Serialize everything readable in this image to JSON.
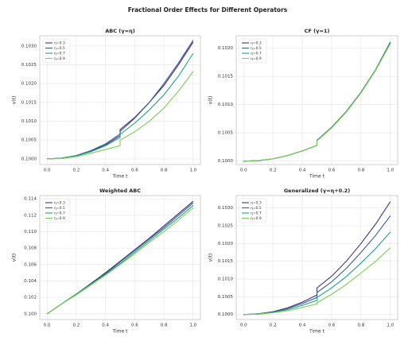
{
  "title": "Fractional Order Effects for Different Operators",
  "chart_data": [
    {
      "type": "line",
      "title": "ABC (γ=η)",
      "xlabel": "Time t",
      "ylabel": "v(t)",
      "grid": true,
      "legend": "upper left",
      "x": [
        0,
        0.1,
        0.2,
        0.3,
        0.4,
        0.5,
        0.5,
        0.6,
        0.7,
        0.8,
        0.9,
        1.0
      ],
      "xlim": [
        -0.05,
        1.05
      ],
      "xticks": [
        {
          "value": 0,
          "label": "0.0"
        },
        {
          "value": 0.2,
          "label": "0.2"
        },
        {
          "value": 0.4,
          "label": "0.4"
        },
        {
          "value": 0.6,
          "label": "0.6"
        },
        {
          "value": 0.8,
          "label": "0.8"
        },
        {
          "value": 1.0,
          "label": "1.0"
        }
      ],
      "ylim": [
        0.09985,
        0.10327
      ],
      "yticks": [
        {
          "value": 0.1,
          "label": "0.1000"
        },
        {
          "value": 0.1005,
          "label": "0.1005"
        },
        {
          "value": 0.101,
          "label": "0.1010"
        },
        {
          "value": 0.1015,
          "label": "0.1015"
        },
        {
          "value": 0.102,
          "label": "0.1020"
        },
        {
          "value": 0.1025,
          "label": "0.1025"
        },
        {
          "value": 0.103,
          "label": "0.1030"
        }
      ],
      "series": [
        {
          "name": "η=0.3",
          "color": "#46327e",
          "values": [
            0.1,
            0.10002,
            0.10008,
            0.1002,
            0.10037,
            0.10062,
            0.10078,
            0.1011,
            0.1015,
            0.10195,
            0.1025,
            0.1031
          ]
        },
        {
          "name": "η=0.5",
          "color": "#365c8d",
          "values": [
            0.1,
            0.10002,
            0.10009,
            0.10022,
            0.1004,
            0.10066,
            0.10073,
            0.10108,
            0.1015,
            0.102,
            0.10255,
            0.10315
          ]
        },
        {
          "name": "η=0.7",
          "color": "#1fa187",
          "values": [
            0.1,
            0.10002,
            0.10008,
            0.10019,
            0.10035,
            0.10057,
            0.10065,
            0.10095,
            0.1013,
            0.1017,
            0.1022,
            0.1028
          ]
        },
        {
          "name": "η=0.9",
          "color": "#7ad151",
          "values": [
            0.1,
            0.10001,
            0.10006,
            0.10015,
            0.10025,
            0.10035,
            0.1005,
            0.10072,
            0.101,
            0.10135,
            0.1018,
            0.10232
          ]
        }
      ]
    },
    {
      "type": "line",
      "title": "CF (γ=1)",
      "xlabel": "Time t",
      "ylabel": "v(t)",
      "grid": true,
      "legend": "upper left",
      "x": [
        0,
        0.1,
        0.2,
        0.3,
        0.4,
        0.5,
        0.5,
        0.6,
        0.7,
        0.8,
        0.9,
        1.0
      ],
      "xlim": [
        -0.05,
        1.05
      ],
      "xticks": [
        {
          "value": 0,
          "label": "0.0"
        },
        {
          "value": 0.2,
          "label": "0.2"
        },
        {
          "value": 0.4,
          "label": "0.4"
        },
        {
          "value": 0.6,
          "label": "0.6"
        },
        {
          "value": 0.8,
          "label": "0.8"
        },
        {
          "value": 1.0,
          "label": "1.0"
        }
      ],
      "ylim": [
        0.09994,
        0.10222
      ],
      "yticks": [
        {
          "value": 0.1,
          "label": "0.1000"
        },
        {
          "value": 0.1005,
          "label": "0.1005"
        },
        {
          "value": 0.101,
          "label": "0.1010"
        },
        {
          "value": 0.1015,
          "label": "0.1015"
        },
        {
          "value": 0.102,
          "label": "0.1020"
        }
      ],
      "series": [
        {
          "name": "η=0.3",
          "color": "#46327e",
          "values": [
            0.1,
            0.10001,
            0.10004,
            0.1001,
            0.10018,
            0.10028,
            0.10037,
            0.1006,
            0.10088,
            0.10122,
            0.10162,
            0.10211
          ]
        },
        {
          "name": "η=0.5",
          "color": "#365c8d",
          "values": [
            0.1,
            0.10001,
            0.10004,
            0.1001,
            0.10018,
            0.10028,
            0.10037,
            0.1006,
            0.10088,
            0.10122,
            0.10162,
            0.1021
          ]
        },
        {
          "name": "η=0.7",
          "color": "#1fa187",
          "values": [
            0.1,
            0.10001,
            0.10004,
            0.1001,
            0.10018,
            0.10028,
            0.10036,
            0.10059,
            0.10087,
            0.10121,
            0.10161,
            0.10209
          ]
        },
        {
          "name": "η=0.9",
          "color": "#7ad151",
          "values": [
            0.1,
            0.10001,
            0.10004,
            0.1001,
            0.10018,
            0.10028,
            0.10036,
            0.10059,
            0.10087,
            0.10121,
            0.10161,
            0.10208
          ]
        }
      ]
    },
    {
      "type": "line",
      "title": "Weighted ABC",
      "xlabel": "Time t",
      "ylabel": "v(t)",
      "grid": true,
      "legend": "upper left",
      "x": [
        0,
        0.1,
        0.2,
        0.3,
        0.4,
        0.5,
        0.6,
        0.7,
        0.8,
        0.9,
        1.0
      ],
      "xlim": [
        -0.05,
        1.05
      ],
      "xticks": [
        {
          "value": 0,
          "label": "0.0"
        },
        {
          "value": 0.2,
          "label": "0.2"
        },
        {
          "value": 0.4,
          "label": "0.4"
        },
        {
          "value": 0.6,
          "label": "0.6"
        },
        {
          "value": 0.8,
          "label": "0.8"
        },
        {
          "value": 1.0,
          "label": "1.0"
        }
      ],
      "ylim": [
        0.0993,
        0.1144
      ],
      "yticks": [
        {
          "value": 0.1,
          "label": "0.100"
        },
        {
          "value": 0.102,
          "label": "0.102"
        },
        {
          "value": 0.104,
          "label": "0.104"
        },
        {
          "value": 0.106,
          "label": "0.106"
        },
        {
          "value": 0.108,
          "label": "0.108"
        },
        {
          "value": 0.11,
          "label": "0.110"
        },
        {
          "value": 0.112,
          "label": "0.112"
        },
        {
          "value": 0.114,
          "label": "0.114"
        }
      ],
      "series": [
        {
          "name": "η=0.3",
          "color": "#46327e",
          "values": [
            0.1,
            0.1012,
            0.1024,
            0.1037,
            0.105,
            0.1064,
            0.1078,
            0.1092,
            0.1107,
            0.1122,
            0.1137
          ]
        },
        {
          "name": "η=0.5",
          "color": "#365c8d",
          "values": [
            0.1,
            0.1012,
            0.1024,
            0.1036,
            0.1049,
            0.1063,
            0.1077,
            0.1091,
            0.1105,
            0.112,
            0.1135
          ]
        },
        {
          "name": "η=0.7",
          "color": "#1fa187",
          "values": [
            0.1,
            0.1012,
            0.1024,
            0.1036,
            0.1048,
            0.1061,
            0.1075,
            0.1089,
            0.1103,
            0.1117,
            0.1132
          ]
        },
        {
          "name": "η=0.9",
          "color": "#7ad151",
          "values": [
            0.1,
            0.1012,
            0.1023,
            0.1035,
            0.1047,
            0.106,
            0.1073,
            0.1087,
            0.11,
            0.1114,
            0.1129
          ]
        }
      ]
    },
    {
      "type": "line",
      "title": "Generalized (γ=η+0.2)",
      "xlabel": "Time t",
      "ylabel": "v(t)",
      "grid": true,
      "legend": "upper left",
      "x": [
        0,
        0.1,
        0.2,
        0.3,
        0.4,
        0.5,
        0.5,
        0.6,
        0.7,
        0.8,
        0.9,
        1.0
      ],
      "xlim": [
        -0.05,
        1.05
      ],
      "xticks": [
        {
          "value": 0,
          "label": "0.0"
        },
        {
          "value": 0.2,
          "label": "0.2"
        },
        {
          "value": 0.4,
          "label": "0.4"
        },
        {
          "value": 0.6,
          "label": "0.6"
        },
        {
          "value": 0.8,
          "label": "0.8"
        },
        {
          "value": 1.0,
          "label": "1.0"
        }
      ],
      "ylim": [
        0.09986,
        0.10335
      ],
      "yticks": [
        {
          "value": 0.1,
          "label": "0.1000"
        },
        {
          "value": 0.1005,
          "label": "0.1005"
        },
        {
          "value": 0.101,
          "label": "0.1010"
        },
        {
          "value": 0.1015,
          "label": "0.1015"
        },
        {
          "value": 0.102,
          "label": "0.1020"
        },
        {
          "value": 0.1025,
          "label": "0.1025"
        },
        {
          "value": 0.103,
          "label": "0.1030"
        }
      ],
      "series": [
        {
          "name": "η=0.3",
          "color": "#46327e",
          "values": [
            0.1,
            0.10002,
            0.10008,
            0.10019,
            0.10035,
            0.10055,
            0.10075,
            0.10108,
            0.1015,
            0.102,
            0.10255,
            0.10318
          ]
        },
        {
          "name": "η=0.5",
          "color": "#365c8d",
          "values": [
            0.1,
            0.10002,
            0.10007,
            0.10017,
            0.10031,
            0.10048,
            0.10062,
            0.10092,
            0.1013,
            0.10175,
            0.10223,
            0.10278
          ]
        },
        {
          "name": "η=0.7",
          "color": "#1fa187",
          "values": [
            0.1,
            0.10001,
            0.10006,
            0.10014,
            0.10026,
            0.1004,
            0.10048,
            0.10075,
            0.10107,
            0.10145,
            0.10186,
            0.10232
          ]
        },
        {
          "name": "η=0.9",
          "color": "#7ad151",
          "values": [
            0.1,
            0.10001,
            0.10005,
            0.10011,
            0.1002,
            0.1003,
            0.10033,
            0.10057,
            0.10085,
            0.10117,
            0.1015,
            0.10188
          ]
        }
      ]
    }
  ]
}
